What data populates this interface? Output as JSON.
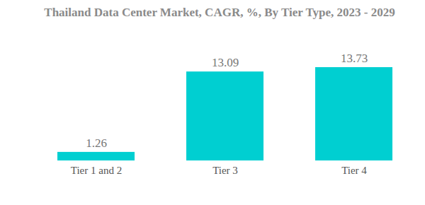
{
  "chart_data": {
    "type": "bar",
    "title": "Thailand Data Center Market, CAGR, %, By Tier Type, 2023 - 2029",
    "categories": [
      "Tier 1 and 2",
      "Tier 3",
      "Tier 4"
    ],
    "values": [
      1.26,
      13.09,
      13.73
    ],
    "color": "#00cfd1",
    "ylim": [
      0,
      13.73
    ],
    "data_labels": true,
    "tick_labels": "x"
  }
}
